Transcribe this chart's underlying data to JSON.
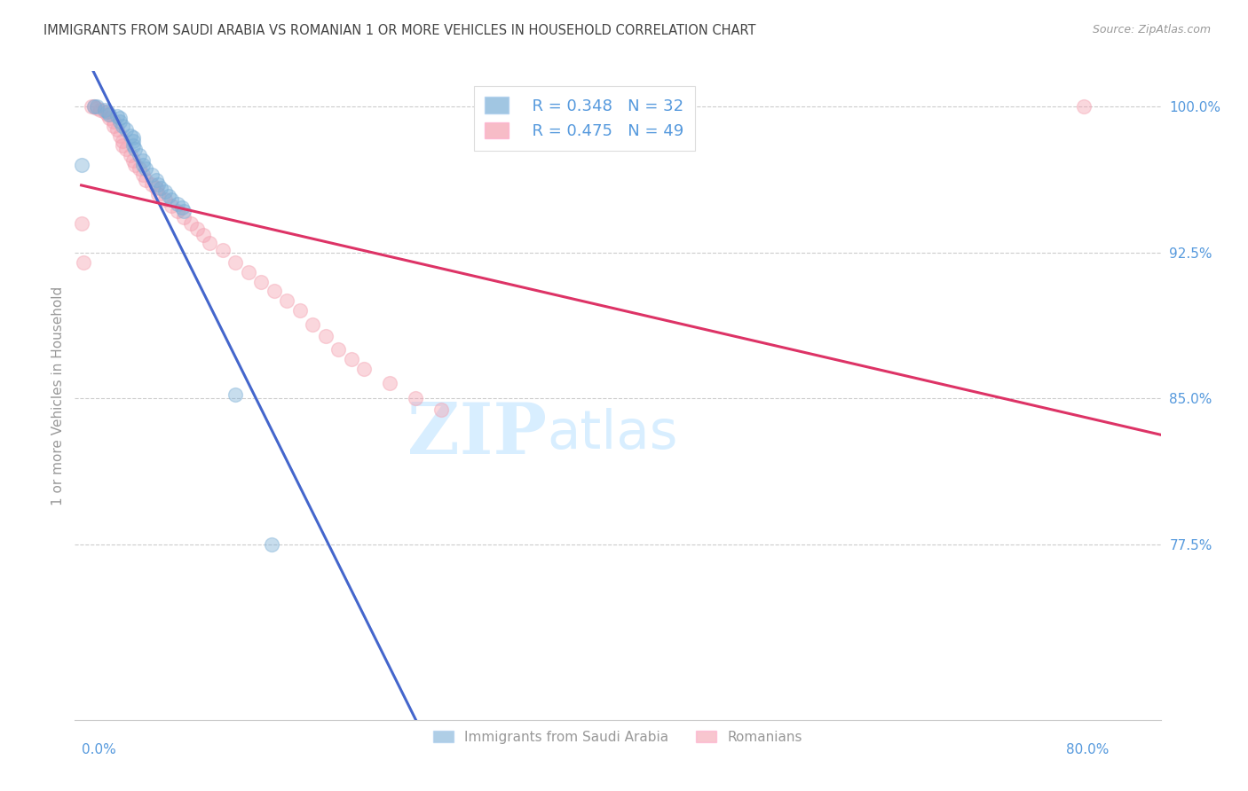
{
  "title": "IMMIGRANTS FROM SAUDI ARABIA VS ROMANIAN 1 OR MORE VEHICLES IN HOUSEHOLD CORRELATION CHART",
  "source": "Source: ZipAtlas.com",
  "ylabel": "1 or more Vehicles in Household",
  "ylabel_color": "#999999",
  "ylabel_fontsize": 11,
  "ytick_labels": [
    "100.0%",
    "92.5%",
    "85.0%",
    "77.5%"
  ],
  "ytick_values": [
    1.0,
    0.925,
    0.85,
    0.775
  ],
  "ylim": [
    0.685,
    1.018
  ],
  "xlim": [
    -0.005,
    0.84
  ],
  "xtick_left_label": "0.0%",
  "xtick_right_label": "80.0%",
  "legend_blue_r": "R = 0.348",
  "legend_blue_n": "N = 32",
  "legend_pink_r": "R = 0.475",
  "legend_pink_n": "N = 49",
  "legend_label_blue": "Immigrants from Saudi Arabia",
  "legend_label_pink": "Romanians",
  "blue_color": "#7AAED6",
  "pink_color": "#F4A0B0",
  "blue_line_color": "#4466CC",
  "pink_line_color": "#DD3366",
  "watermark_zip": "ZIP",
  "watermark_atlas": "atlas",
  "watermark_color": "#D8EEFF",
  "background_color": "#FFFFFF",
  "grid_color": "#CCCCCC",
  "title_color": "#444444",
  "tick_label_color": "#5599DD",
  "axis_label_color": "#999999",
  "dot_size": 130,
  "dot_alpha": 0.42,
  "blue_dots_x": [
    0.0,
    0.01,
    0.012,
    0.018,
    0.02,
    0.022,
    0.028,
    0.03,
    0.03,
    0.032,
    0.035,
    0.038,
    0.04,
    0.04,
    0.04,
    0.042,
    0.045,
    0.048,
    0.048,
    0.05,
    0.055,
    0.058,
    0.06,
    0.062,
    0.065,
    0.068,
    0.07,
    0.075,
    0.078,
    0.08,
    0.12,
    0.148
  ],
  "blue_dots_y": [
    0.97,
    1.0,
    1.0,
    0.998,
    0.997,
    0.996,
    0.995,
    0.994,
    0.992,
    0.99,
    0.988,
    0.985,
    0.984,
    0.982,
    0.98,
    0.978,
    0.975,
    0.972,
    0.97,
    0.968,
    0.965,
    0.962,
    0.96,
    0.958,
    0.956,
    0.954,
    0.952,
    0.95,
    0.948,
    0.946,
    0.852,
    0.775
  ],
  "pink_dots_x": [
    0.0,
    0.002,
    0.008,
    0.01,
    0.012,
    0.015,
    0.018,
    0.02,
    0.022,
    0.025,
    0.025,
    0.028,
    0.03,
    0.032,
    0.032,
    0.035,
    0.038,
    0.04,
    0.042,
    0.045,
    0.048,
    0.05,
    0.055,
    0.058,
    0.06,
    0.065,
    0.07,
    0.075,
    0.08,
    0.085,
    0.09,
    0.095,
    0.1,
    0.11,
    0.12,
    0.13,
    0.14,
    0.15,
    0.16,
    0.17,
    0.18,
    0.19,
    0.2,
    0.21,
    0.22,
    0.24,
    0.26,
    0.28,
    0.78
  ],
  "pink_dots_y": [
    0.94,
    0.92,
    1.0,
    1.0,
    0.999,
    0.998,
    0.997,
    0.996,
    0.994,
    0.992,
    0.99,
    0.988,
    0.985,
    0.982,
    0.98,
    0.978,
    0.975,
    0.972,
    0.97,
    0.968,
    0.965,
    0.962,
    0.96,
    0.958,
    0.955,
    0.952,
    0.949,
    0.946,
    0.943,
    0.94,
    0.937,
    0.934,
    0.93,
    0.926,
    0.92,
    0.915,
    0.91,
    0.905,
    0.9,
    0.895,
    0.888,
    0.882,
    0.875,
    0.87,
    0.865,
    0.858,
    0.85,
    0.844,
    1.0
  ]
}
